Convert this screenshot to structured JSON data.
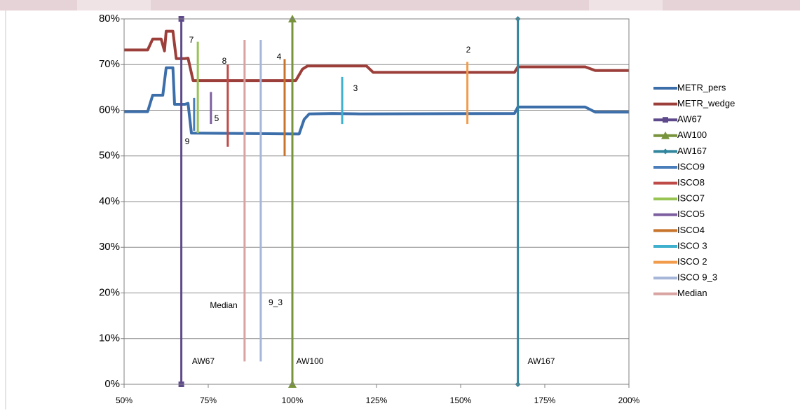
{
  "chart_data": {
    "type": "line",
    "xlim": [
      50,
      200
    ],
    "xticks": [
      {
        "value": 50,
        "label": "50%"
      },
      {
        "value": 75,
        "label": "75%"
      },
      {
        "value": 100,
        "label": "100%"
      },
      {
        "value": 125,
        "label": "125%"
      },
      {
        "value": 150,
        "label": "150%"
      },
      {
        "value": 175,
        "label": "175%"
      },
      {
        "value": 200,
        "label": "200%"
      }
    ],
    "ylim": [
      0,
      80
    ],
    "yticks": [
      {
        "value": 0,
        "label": "0%"
      },
      {
        "value": 10,
        "label": "10%"
      },
      {
        "value": 20,
        "label": "20%"
      },
      {
        "value": 30,
        "label": "30%"
      },
      {
        "value": 40,
        "label": "40%"
      },
      {
        "value": 50,
        "label": "50%"
      },
      {
        "value": 60,
        "label": "60%"
      },
      {
        "value": 70,
        "label": "70%"
      },
      {
        "value": 80,
        "label": "80%"
      }
    ],
    "grid": true,
    "legend": "right",
    "series": [
      {
        "name": "METR_pers",
        "color": "#3c6eaa",
        "x": [
          50,
          57,
          58.5,
          61.5,
          62.5,
          64.5,
          65,
          68,
          69,
          70,
          102,
          103.5,
          105,
          112,
          120,
          166,
          167,
          187,
          190,
          200
        ],
        "values": [
          59.7,
          59.7,
          63.3,
          63.3,
          69.3,
          69.3,
          61.3,
          61.3,
          61.5,
          55,
          54.8,
          58,
          59.2,
          59.3,
          59.2,
          59.3,
          60.7,
          60.7,
          59.6,
          59.6
        ]
      },
      {
        "name": "METR_wedge",
        "color": "#9c3f3a",
        "x": [
          50,
          57,
          58.5,
          61,
          62,
          62.5,
          64.5,
          65.5,
          68,
          69,
          70.5,
          101,
          103,
          104.5,
          122,
          124,
          166,
          167,
          187,
          190,
          200
        ],
        "values": [
          73.2,
          73.2,
          75.6,
          75.6,
          73,
          77.3,
          77.3,
          71.3,
          71.3,
          71.4,
          66.5,
          66.5,
          69,
          69.7,
          69.7,
          68.3,
          68.3,
          69.5,
          69.5,
          68.7,
          68.7
        ]
      },
      {
        "name": "AW67",
        "color": "#5e4a8b",
        "marker": "square",
        "x": [
          67,
          67
        ],
        "values": [
          0,
          80
        ]
      },
      {
        "name": "AW100",
        "color": "#77933c",
        "marker": "triangle",
        "x": [
          100,
          100
        ],
        "values": [
          0,
          80
        ]
      },
      {
        "name": "AW167",
        "color": "#31859c",
        "marker": "diamond",
        "x": [
          167,
          167
        ],
        "values": [
          0,
          80
        ]
      },
      {
        "name": "ISCO9",
        "color": "#4a7ebb",
        "x": [
          70.8,
          70.8
        ],
        "values": [
          55.5,
          62.7
        ]
      },
      {
        "name": "ISCO8",
        "color": "#be4b48",
        "x": [
          80.8,
          80.8
        ],
        "values": [
          52,
          70
        ]
      },
      {
        "name": "ISCO7",
        "color": "#98c454",
        "x": [
          71.9,
          71.9
        ],
        "values": [
          55,
          75
        ]
      },
      {
        "name": "ISCO5",
        "color": "#7d5fa0",
        "x": [
          75.8,
          75.8
        ],
        "values": [
          57,
          64
        ]
      },
      {
        "name": "ISCO4",
        "color": "#c8742c",
        "x": [
          97.7,
          97.7
        ],
        "values": [
          50,
          71.2
        ]
      },
      {
        "name": "ISCO 3",
        "color": "#3fb1cf",
        "x": [
          114.8,
          114.8
        ],
        "values": [
          57,
          67.3
        ]
      },
      {
        "name": "ISCO 2",
        "color": "#f29b4b",
        "x": [
          152,
          152
        ],
        "values": [
          57,
          70.6
        ]
      },
      {
        "name": "ISCO 9_3",
        "color": "#a5b6d8",
        "x": [
          90.6,
          90.6
        ],
        "values": [
          5,
          75.4
        ]
      },
      {
        "name": "Median",
        "color": "#d9a3a2",
        "x": [
          85.8,
          85.8
        ],
        "values": [
          5,
          75.4
        ]
      }
    ],
    "annotations": [
      "7",
      "8",
      "4",
      "3",
      "2",
      "5",
      "9",
      "Median",
      "9_3",
      "AW67",
      "AW100",
      "AW167"
    ]
  }
}
